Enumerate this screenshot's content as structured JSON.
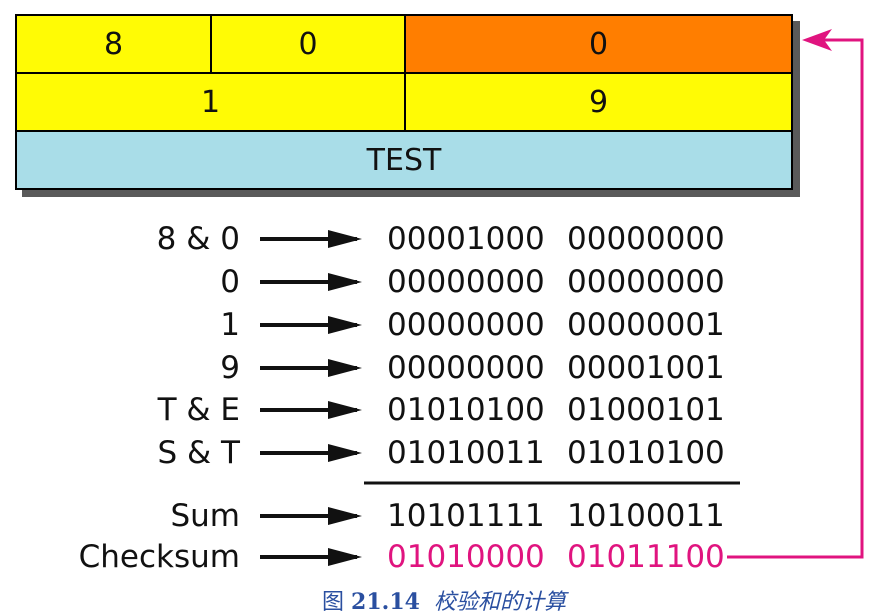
{
  "header": {
    "row1": [
      "8",
      "0",
      "0"
    ],
    "row2": [
      "1",
      "9"
    ],
    "row3": "TEST"
  },
  "rows": [
    {
      "label": "8 & 0",
      "b1": "00001000",
      "b2": "00000000"
    },
    {
      "label": "0",
      "b1": "00000000",
      "b2": "00000000"
    },
    {
      "label": "1",
      "b1": "00000000",
      "b2": "00000001"
    },
    {
      "label": "9",
      "b1": "00000000",
      "b2": "00001001"
    },
    {
      "label": "T & E",
      "b1": "01010100",
      "b2": "01000101"
    },
    {
      "label": "S & T",
      "b1": "01010011",
      "b2": "01010100"
    }
  ],
  "sum": {
    "label": "Sum",
    "b1": "10101111",
    "b2": "10100011"
  },
  "checksum": {
    "label": "Checksum",
    "b1": "01010000",
    "b2": "01011100"
  },
  "caption": {
    "fig": "图",
    "num": "21.14",
    "text": "校验和的计算"
  },
  "colors": {
    "yellow": "#fffb05",
    "orange": "#ff7e00",
    "blue": "#a9dde8",
    "magenta": "#e0147f"
  }
}
